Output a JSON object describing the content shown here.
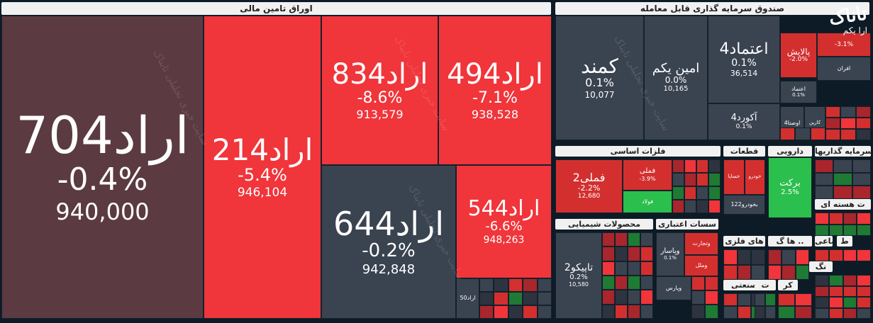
{
  "colors": {
    "bright_red": "#f0353b",
    "red": "#d32f2f",
    "dark_red": "#a8262c",
    "slate": "#3a4350",
    "dark_slate": "#2d343f",
    "maroon": "#5b3a42",
    "green": "#2bbf4d",
    "dark_green": "#1f7a34"
  },
  "logo": {
    "text": "تاناک",
    "sub": "ارا یکم"
  },
  "watermark": "سایت خبری تحلیلی تابناک",
  "sectors": [
    {
      "label": "اوراق تامین مالی"
    },
    {
      "label": "صندوق سرمایه گذاری قابل معامله"
    },
    {
      "label": "فلزات اساسی"
    },
    {
      "label": "قطعات"
    },
    {
      "label": "دارویی"
    },
    {
      "label": "سرمایه گذاریها"
    },
    {
      "label": "محصولات شیمیایی"
    },
    {
      "label": "سسات اعتباری"
    },
    {
      "label": "ت هسته ای"
    },
    {
      "label": "ها گ .."
    },
    {
      "label": "های فلزی"
    },
    {
      "label": "ماعی"
    },
    {
      "label": "ط"
    },
    {
      "label": "نگ"
    },
    {
      "label": "صنعتی"
    },
    {
      "label": "ت"
    },
    {
      "label": "کر"
    }
  ],
  "chart_data": {
    "type": "treemap",
    "tiles": [
      {
        "name": "اراد704",
        "change": "-0.4%",
        "value": "940,000",
        "color": "maroon"
      },
      {
        "name": "اراد214",
        "change": "-5.4%",
        "value": "946,104",
        "color": "bright_red"
      },
      {
        "name": "اراد834",
        "change": "-8.6%",
        "value": "913,579",
        "color": "bright_red"
      },
      {
        "name": "اراد494",
        "change": "-7.1%",
        "value": "938,528",
        "color": "bright_red"
      },
      {
        "name": "اراد644",
        "change": "-0.2%",
        "value": "942,848",
        "color": "slate"
      },
      {
        "name": "اراد544",
        "change": "-6.6%",
        "value": "948,263",
        "color": "bright_red"
      },
      {
        "name": "اراد50",
        "change": "",
        "value": "",
        "color": "slate"
      },
      {
        "name": "کمند",
        "change": "0.1%",
        "value": "10,077",
        "color": "slate"
      },
      {
        "name": "امین یکم",
        "change": "0.0%",
        "value": "10,165",
        "color": "slate"
      },
      {
        "name": "اعتماد4",
        "change": "0.1%",
        "value": "36,514",
        "color": "slate"
      },
      {
        "name": "پالایش",
        "change": "-2.0%",
        "value": "",
        "color": "red"
      },
      {
        "name": "",
        "change": "-3.1%",
        "value": "",
        "color": "red"
      },
      {
        "name": "افران",
        "change": "",
        "value": "",
        "color": "slate"
      },
      {
        "name": "اعتماد",
        "change": "0.1%",
        "value": "",
        "color": "slate"
      },
      {
        "name": "آکورد4",
        "change": "0.1%",
        "value": "",
        "color": "slate"
      },
      {
        "name": "اوصتا4",
        "change": "",
        "value": "",
        "color": "slate"
      },
      {
        "name": "کارین",
        "change": "",
        "value": "",
        "color": "slate"
      },
      {
        "name": "فملی2",
        "change": "-2.2%",
        "value": "12,680",
        "color": "red"
      },
      {
        "name": "فملی",
        "change": "-3.9%",
        "value": "",
        "color": "red"
      },
      {
        "name": "فولاد",
        "change": "",
        "value": "",
        "color": "green"
      },
      {
        "name": "خساپا",
        "change": "",
        "value": "",
        "color": "red"
      },
      {
        "name": "خودرو",
        "change": "",
        "value": "",
        "color": "red"
      },
      {
        "name": "بخودرو122",
        "change": "",
        "value": "",
        "color": "slate"
      },
      {
        "name": "برکت",
        "change": "2.5%",
        "value": "",
        "color": "green"
      },
      {
        "name": "تاپیکو2",
        "change": "0.2%",
        "value": "10,580",
        "color": "slate"
      },
      {
        "name": "وپاسار",
        "change": "0.1%",
        "value": "",
        "color": "slate"
      },
      {
        "name": "وتجارت",
        "change": "",
        "value": "",
        "color": "red"
      },
      {
        "name": "وملل",
        "change": "",
        "value": "",
        "color": "red"
      },
      {
        "name": "وپارس",
        "change": "",
        "value": "",
        "color": "slate"
      }
    ]
  }
}
